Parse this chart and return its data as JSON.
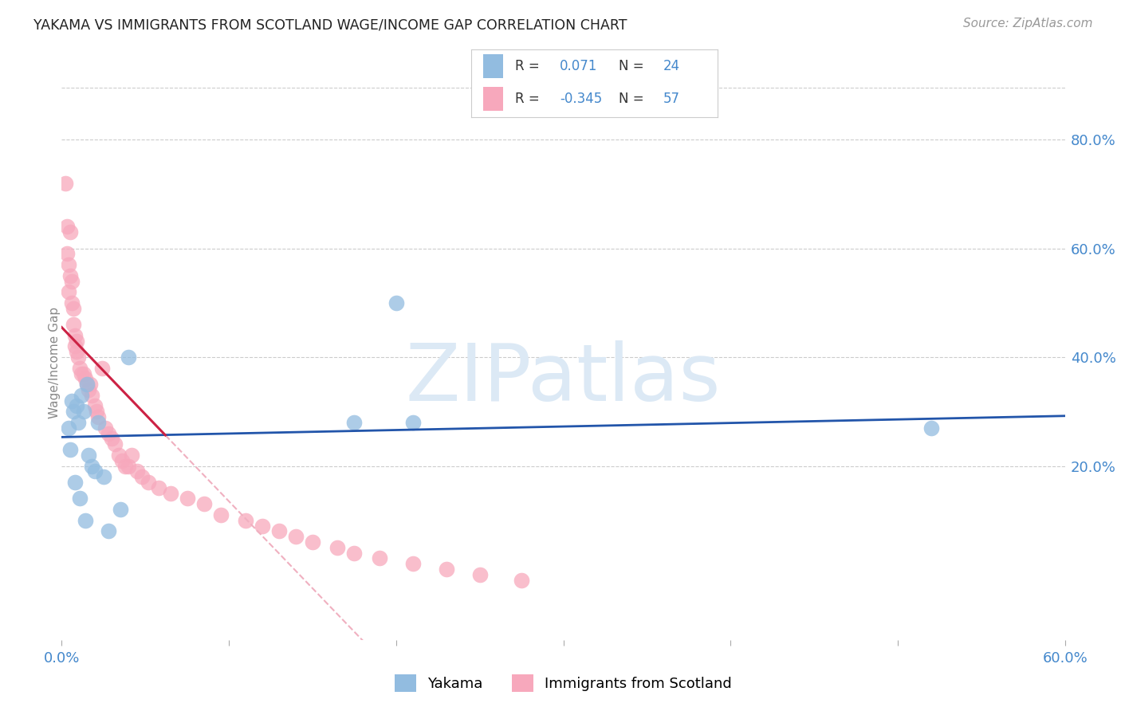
{
  "title": "YAKAMA VS IMMIGRANTS FROM SCOTLAND WAGE/INCOME GAP CORRELATION CHART",
  "source": "Source: ZipAtlas.com",
  "ylabel": "Wage/Income Gap",
  "right_yticklabels": [
    "20.0%",
    "40.0%",
    "60.0%",
    "80.0%"
  ],
  "right_ytick_vals": [
    0.2,
    0.4,
    0.6,
    0.8
  ],
  "yakama_color": "#92bce0",
  "scotland_color": "#f7a8bc",
  "trend_yakama_color": "#2255aa",
  "trend_scotland_solid_color": "#cc2244",
  "trend_scotland_dash_color": "#f0b0c0",
  "watermark_text": "ZIPatlas",
  "watermark_color": "#dce9f5",
  "background_color": "#ffffff",
  "grid_color": "#cccccc",
  "xlim": [
    0.0,
    0.6
  ],
  "ylim": [
    -0.12,
    0.9
  ],
  "r_yakama": "0.071",
  "n_yakama": "24",
  "r_scotland": "-0.345",
  "n_scotland": "57",
  "yakama_x": [
    0.004,
    0.005,
    0.006,
    0.007,
    0.008,
    0.009,
    0.01,
    0.011,
    0.012,
    0.013,
    0.014,
    0.015,
    0.016,
    0.018,
    0.02,
    0.022,
    0.025,
    0.028,
    0.035,
    0.04,
    0.175,
    0.2,
    0.21,
    0.52
  ],
  "yakama_y": [
    0.27,
    0.23,
    0.32,
    0.3,
    0.17,
    0.31,
    0.28,
    0.14,
    0.33,
    0.3,
    0.1,
    0.35,
    0.22,
    0.2,
    0.19,
    0.28,
    0.18,
    0.08,
    0.12,
    0.4,
    0.28,
    0.5,
    0.28,
    0.27
  ],
  "scotland_x": [
    0.002,
    0.003,
    0.003,
    0.004,
    0.004,
    0.005,
    0.005,
    0.006,
    0.006,
    0.007,
    0.007,
    0.008,
    0.008,
    0.009,
    0.009,
    0.01,
    0.011,
    0.012,
    0.013,
    0.014,
    0.015,
    0.016,
    0.017,
    0.018,
    0.02,
    0.021,
    0.022,
    0.024,
    0.026,
    0.028,
    0.03,
    0.032,
    0.034,
    0.036,
    0.038,
    0.04,
    0.042,
    0.045,
    0.048,
    0.052,
    0.058,
    0.065,
    0.075,
    0.085,
    0.095,
    0.11,
    0.12,
    0.13,
    0.14,
    0.15,
    0.165,
    0.175,
    0.19,
    0.21,
    0.23,
    0.25,
    0.275
  ],
  "scotland_y": [
    0.72,
    0.64,
    0.59,
    0.57,
    0.52,
    0.63,
    0.55,
    0.54,
    0.5,
    0.49,
    0.46,
    0.44,
    0.42,
    0.43,
    0.41,
    0.4,
    0.38,
    0.37,
    0.37,
    0.36,
    0.35,
    0.34,
    0.35,
    0.33,
    0.31,
    0.3,
    0.29,
    0.38,
    0.27,
    0.26,
    0.25,
    0.24,
    0.22,
    0.21,
    0.2,
    0.2,
    0.22,
    0.19,
    0.18,
    0.17,
    0.16,
    0.15,
    0.14,
    0.13,
    0.11,
    0.1,
    0.09,
    0.08,
    0.07,
    0.06,
    0.05,
    0.04,
    0.03,
    0.02,
    0.01,
    0.0,
    -0.01
  ]
}
